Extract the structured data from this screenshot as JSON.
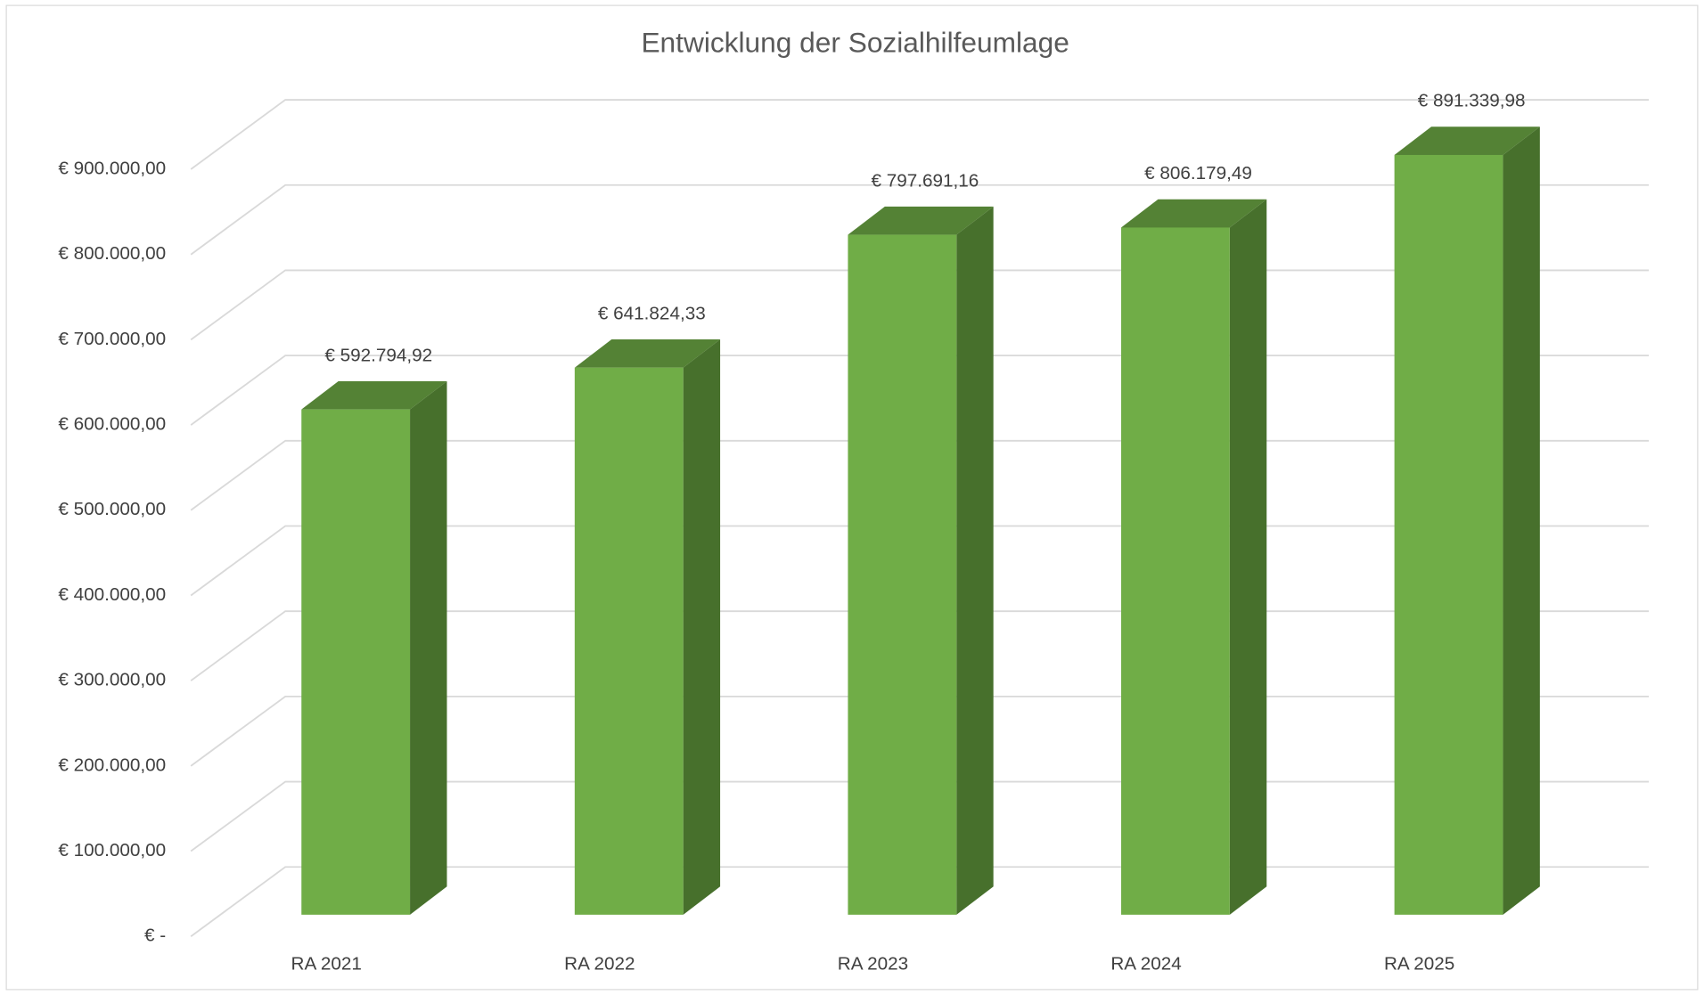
{
  "chart_data": {
    "type": "bar3d",
    "title": "Entwicklung der Sozialhilfeumlage",
    "categories": [
      "RA 2021",
      "RA 2022",
      "RA 2023",
      "RA 2024",
      "RA 2025"
    ],
    "values": [
      592794.92,
      641824.33,
      797691.16,
      806179.49,
      891339.98
    ],
    "value_labels": [
      "€ 592.794,92",
      "€ 641.824,33",
      "€ 797.691,16",
      "€ 806.179,49",
      "€ 891.339,98"
    ],
    "color": "#70ad47",
    "ylim": [
      0,
      900000
    ],
    "yticks": [
      {
        "value": 0,
        "label": "€ -"
      },
      {
        "value": 100000,
        "label": "€ 100.000,00"
      },
      {
        "value": 200000,
        "label": "€ 200.000,00"
      },
      {
        "value": 300000,
        "label": "€ 300.000,00"
      },
      {
        "value": 400000,
        "label": "€ 400.000,00"
      },
      {
        "value": 500000,
        "label": "€ 500.000,00"
      },
      {
        "value": 600000,
        "label": "€ 600.000,00"
      },
      {
        "value": 700000,
        "label": "€ 700.000,00"
      },
      {
        "value": 800000,
        "label": "€ 800.000,00"
      },
      {
        "value": 900000,
        "label": "€ 900.000,00"
      }
    ],
    "grid": true
  }
}
